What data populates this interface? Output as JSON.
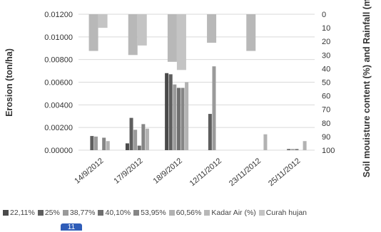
{
  "chart_data": {
    "type": "bar",
    "categories": [
      "14/9/2012",
      "17/9/2012",
      "18/9/2012",
      "12/11/2012",
      "23/11/2012",
      "25/11/2012"
    ],
    "ylabel_left": "Erosion (ton/ha)",
    "ylabel_right": "Soil mouisture content (%) and Rainfall (mm)",
    "ylim_left": [
      0,
      0.012
    ],
    "ylim_right_inverted": [
      0,
      100
    ],
    "y_left_ticks": [
      "0.00000",
      "0.00200",
      "0.00400",
      "0.00600",
      "0.00800",
      "0.01000",
      "0.01200"
    ],
    "y_right_ticks": [
      "0",
      "10",
      "20",
      "30",
      "40",
      "50",
      "60",
      "70",
      "80",
      "90",
      "100"
    ],
    "erosion_series": [
      {
        "name": "22,11%",
        "color": "#4a4a4a",
        "values": [
          null,
          0.0006,
          0.0068,
          null,
          null,
          null
        ]
      },
      {
        "name": "25%",
        "color": "#5e5e5e",
        "values": [
          0.00125,
          0.00285,
          0.0067,
          0.0032,
          null,
          0.0001
        ]
      },
      {
        "name": "38,77%",
        "color": "#9a9a9a",
        "values": [
          0.0012,
          0.0018,
          0.0058,
          0.0074,
          null,
          0.0001
        ]
      },
      {
        "name": "40,10%",
        "color": "#6f6f6f",
        "values": [
          null,
          0.0004,
          0.0055,
          null,
          null,
          0.0001
        ]
      },
      {
        "name": "53,95%",
        "color": "#868686",
        "values": [
          0.0011,
          0.0023,
          0.0055,
          null,
          null,
          null
        ]
      },
      {
        "name": "60,56%",
        "color": "#b2b2b2",
        "values": [
          0.0008,
          0.0019,
          0.006,
          null,
          0.0014,
          0.0008
        ]
      }
    ],
    "hanging_series": [
      {
        "name": "Kadar Air (%)",
        "color": "#b8b8b8",
        "values": [
          27,
          30,
          35,
          21,
          27,
          null
        ]
      },
      {
        "name": "Curah hujan",
        "color": "#c4c4c4",
        "values": [
          10,
          23,
          41,
          null,
          null,
          null
        ]
      }
    ],
    "grid": "horizontal",
    "legend_position": "bottom"
  },
  "badge": "11"
}
